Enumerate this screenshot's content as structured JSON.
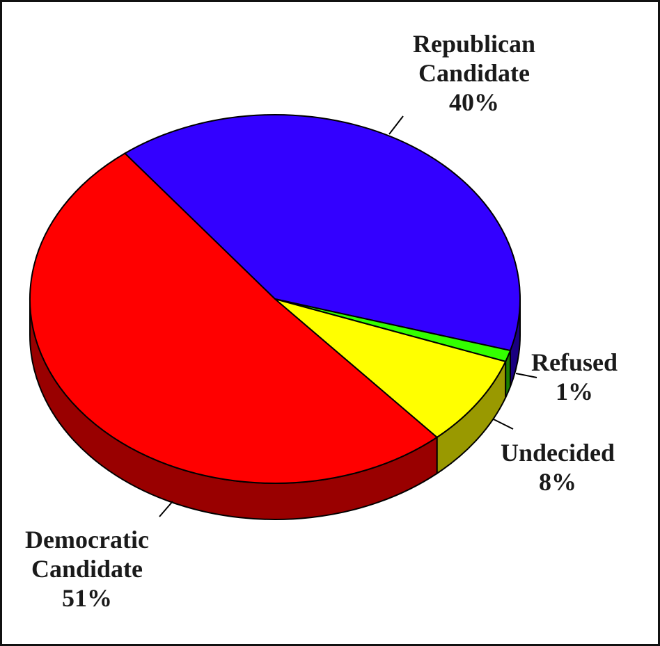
{
  "chart_data": {
    "type": "pie",
    "style": "3d",
    "slices": [
      {
        "label": "Republican Candidate",
        "value": 40,
        "display": "40%",
        "color": "#3300ff",
        "side_color": "#1a0080"
      },
      {
        "label": "Refused",
        "value": 1,
        "display": "1%",
        "color": "#33ff00",
        "side_color": "#1a8000"
      },
      {
        "label": "Undecided",
        "value": 8,
        "display": "8%",
        "color": "#ffff00",
        "side_color": "#999900"
      },
      {
        "label": "Democratic Candidate",
        "value": 51,
        "display": "51%",
        "color": "#ff0000",
        "side_color": "#990000"
      }
    ],
    "label_lines": {
      "Republican Candidate": [
        "Republican",
        "Candidate",
        "40%"
      ],
      "Refused": [
        "Refused",
        "1%"
      ],
      "Undecided": [
        "Undecided",
        "8%"
      ],
      "Democratic Candidate": [
        "Democratic",
        "Candidate",
        "51%"
      ]
    },
    "legend": "none",
    "title": ""
  }
}
